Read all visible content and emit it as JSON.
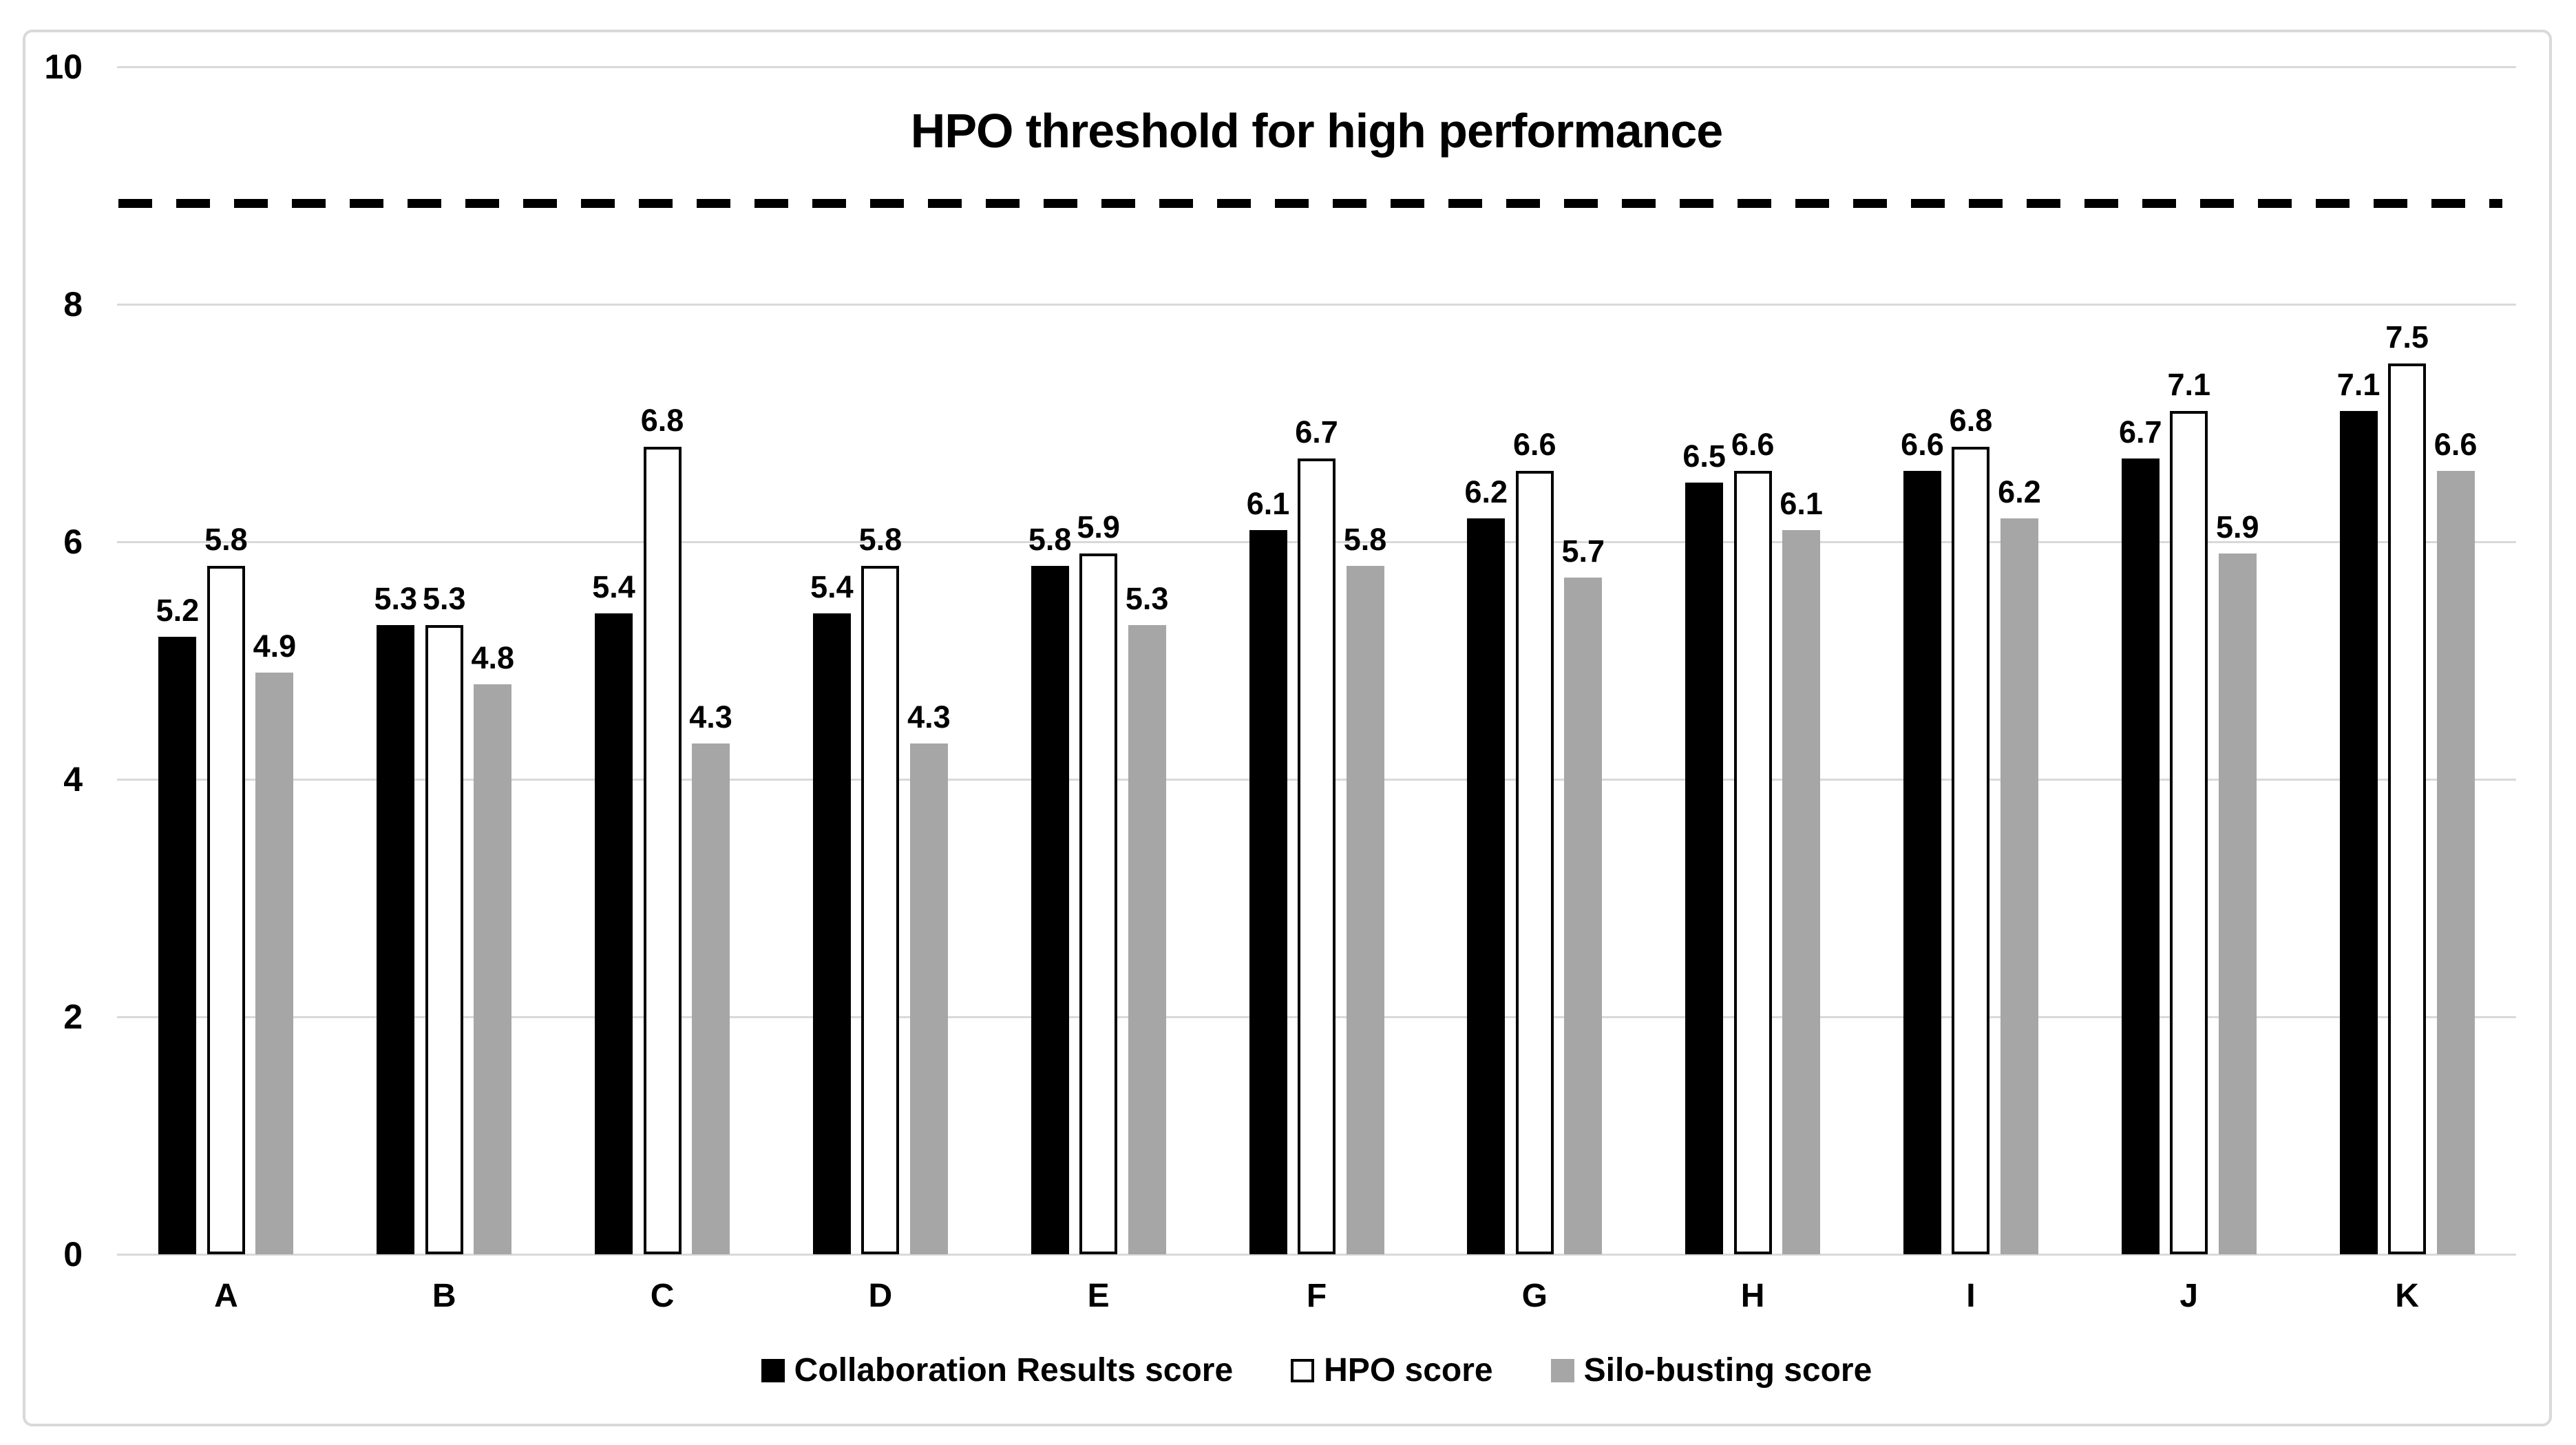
{
  "chart_data": {
    "type": "bar",
    "title": "HPO threshold for high performance",
    "categories": [
      "A",
      "B",
      "C",
      "D",
      "E",
      "F",
      "G",
      "H",
      "I",
      "J",
      "K"
    ],
    "series": [
      {
        "name": "Collaboration Results score",
        "color": "#000000",
        "values": [
          5.2,
          5.3,
          5.4,
          5.4,
          5.8,
          6.1,
          6.2,
          6.5,
          6.6,
          6.7,
          7.1
        ]
      },
      {
        "name": "HPO score",
        "color": "#ffffff",
        "outline": "#000000",
        "values": [
          5.8,
          5.3,
          6.8,
          5.8,
          5.9,
          6.7,
          6.6,
          6.6,
          6.8,
          7.1,
          7.5
        ]
      },
      {
        "name": "Silo-busting score",
        "color": "#a6a6a6",
        "values": [
          4.9,
          4.8,
          4.3,
          4.3,
          5.3,
          5.8,
          5.7,
          6.1,
          6.2,
          5.9,
          6.6
        ]
      }
    ],
    "threshold": {
      "value": 8.85,
      "style": "dashed",
      "color": "#000000",
      "label": "HPO threshold for high performance"
    },
    "y_axis": {
      "min": 0,
      "max": 10,
      "tick_step": 2,
      "ticks": [
        0,
        2,
        4,
        6,
        8,
        10
      ]
    },
    "xlabel": "",
    "ylabel": "",
    "grid": true,
    "value_labels": true,
    "value_label_format": "0.0",
    "legend_position": "bottom"
  },
  "colors": {
    "background": "#ffffff",
    "frame_border": "#d9d9d9",
    "gridline": "#d9d9d9",
    "text": "#000000",
    "bar_collaboration": "#000000",
    "bar_hpo_fill": "#ffffff",
    "bar_hpo_outline": "#000000",
    "bar_silo": "#a6a6a6",
    "threshold_line": "#000000"
  }
}
